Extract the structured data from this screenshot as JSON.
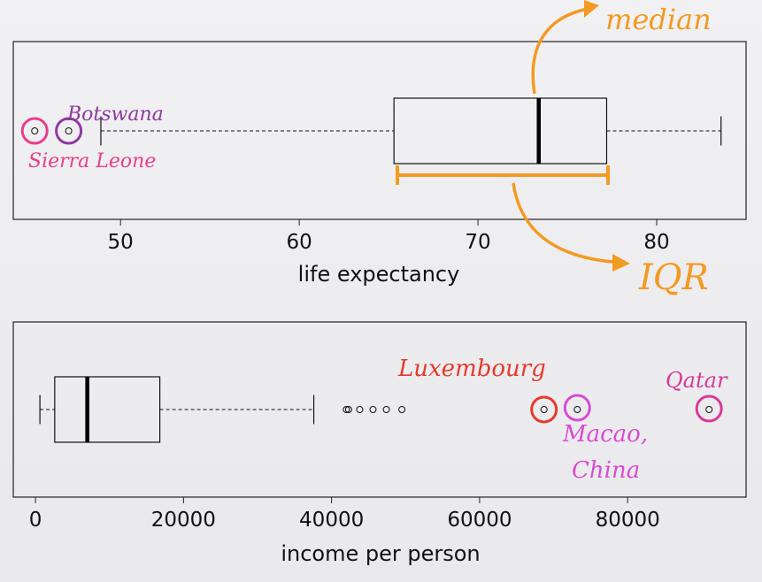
{
  "chart_data": [
    {
      "type": "boxplot",
      "xlabel": "life expectancy",
      "xlim": [
        44,
        85
      ],
      "ticks": [
        50,
        60,
        70,
        80
      ],
      "box": {
        "whisker_low": 48.9,
        "q1": 65.3,
        "median": 73.4,
        "q3": 77.2,
        "whisker_high": 83.6
      },
      "outliers": [
        45.2,
        47.1
      ],
      "annotations": {
        "upper_outlier_label": "Botswana",
        "lower_outlier_label": "Sierra Leone",
        "median_label": "median",
        "iqr_label": "IQR"
      },
      "colors": {
        "outlier1": "#e83f8a",
        "outlier2": "#8f3aa0",
        "annotation": "#f39a22"
      }
    },
    {
      "type": "boxplot",
      "xlabel": "income per person",
      "xlim": [
        -3000,
        96000
      ],
      "ticks": [
        0,
        20000,
        40000,
        60000,
        80000
      ],
      "box": {
        "whisker_low": 600,
        "q1": 2600,
        "median": 7000,
        "q3": 16800,
        "whisker_high": 37600
      },
      "outliers": [
        42000,
        42300,
        43800,
        45600,
        47400,
        49500,
        68700,
        73200,
        91000
      ],
      "annotations": {
        "label1": "Luxembourg",
        "label2a": "Macao,",
        "label2b": "China",
        "label3": "Qatar"
      },
      "colors": {
        "luxembourg": "#e53a2b",
        "macao": "#d84bd2",
        "qatar": "#d73a9b"
      }
    }
  ]
}
